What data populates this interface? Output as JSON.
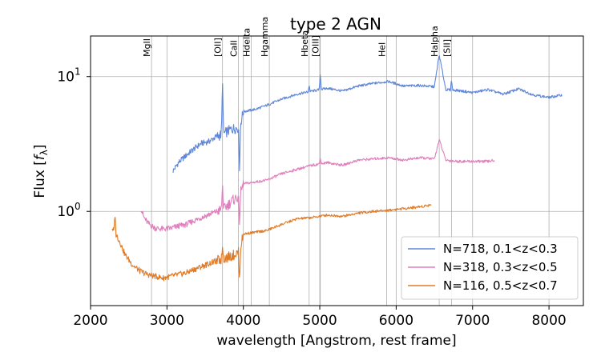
{
  "chart_data": {
    "type": "line",
    "title": "type 2 AGN",
    "xlabel": "wavelength [Angstrom, rest frame]",
    "ylabel_main": "Flux [",
    "ylabel_sym": "f",
    "ylabel_sub": "λ",
    "ylabel_close": "]",
    "xlim": [
      2000,
      8450
    ],
    "ylim": [
      0.2,
      20
    ],
    "yscale": "log",
    "grid": true,
    "legend_position": "lower right",
    "x_ticks": [
      {
        "value": 2000,
        "label": "2000"
      },
      {
        "value": 3000,
        "label": "3000"
      },
      {
        "value": 4000,
        "label": "4000"
      },
      {
        "value": 5000,
        "label": "5000"
      },
      {
        "value": 6000,
        "label": "6000"
      },
      {
        "value": 7000,
        "label": "7000"
      },
      {
        "value": 8000,
        "label": "8000"
      }
    ],
    "y_ticks": [
      {
        "value": 1,
        "base": "10",
        "exp": "0"
      },
      {
        "value": 10,
        "base": "10",
        "exp": "1"
      }
    ],
    "lines": [
      {
        "label": "MgII",
        "x": 2798
      },
      {
        "label": "[OII]",
        "x": 3727
      },
      {
        "label": "CaII",
        "x": 3934
      },
      {
        "label": "Hdelta",
        "x": 4102
      },
      {
        "label": "Hgamma",
        "x": 4340
      },
      {
        "label": "Hbeta",
        "x": 4861
      },
      {
        "label": "[OIII]",
        "x": 5007
      },
      {
        "label": "HeI",
        "x": 5876
      },
      {
        "label": "Halpha",
        "x": 6563
      },
      {
        "label": "[SII]",
        "x": 6724
      }
    ],
    "series": [
      {
        "name": "N=718, 0.1<z<0.3",
        "color": "#5f86d8",
        "x": [
          3080,
          3150,
          3250,
          3350,
          3450,
          3550,
          3650,
          3750,
          3850,
          3950,
          4000,
          4150,
          4300,
          4500,
          4700,
          4900,
          5100,
          5300,
          5500,
          5700,
          5900,
          6100,
          6300,
          6500,
          6563,
          6650,
          6800,
          7000,
          7200,
          7400,
          7600,
          7800,
          8000,
          8170
        ],
        "y": [
          2.0,
          2.3,
          2.6,
          2.9,
          3.2,
          3.3,
          3.6,
          3.8,
          4.1,
          4.2,
          5.5,
          5.7,
          6.1,
          6.8,
          7.4,
          7.8,
          8.2,
          7.8,
          8.5,
          8.9,
          9.2,
          8.5,
          8.6,
          8.4,
          14.5,
          8.0,
          7.9,
          7.6,
          8.0,
          7.4,
          8.1,
          7.3,
          7.0,
          7.3
        ],
        "spikes": [
          [
            3727,
            9.5
          ],
          [
            3950,
            2.0
          ],
          [
            4861,
            8.6
          ],
          [
            5007,
            10.5
          ],
          [
            6724,
            9.5
          ]
        ]
      },
      {
        "name": "N=318, 0.3<z<0.5",
        "color": "#e07fbd",
        "x": [
          2660,
          2700,
          2750,
          2800,
          2850,
          2950,
          3050,
          3150,
          3250,
          3350,
          3450,
          3550,
          3650,
          3750,
          3850,
          3950,
          4000,
          4150,
          4300,
          4500,
          4700,
          4900,
          5100,
          5300,
          5500,
          5700,
          5900,
          6100,
          6300,
          6500,
          6563,
          6650,
          6800,
          7000,
          7200,
          7290
        ],
        "y": [
          1.05,
          0.9,
          0.82,
          0.78,
          0.75,
          0.74,
          0.75,
          0.78,
          0.8,
          0.85,
          0.9,
          0.95,
          1.0,
          1.05,
          1.2,
          1.3,
          1.6,
          1.65,
          1.7,
          1.9,
          2.05,
          2.2,
          2.3,
          2.2,
          2.4,
          2.45,
          2.5,
          2.4,
          2.5,
          2.45,
          3.4,
          2.4,
          2.35,
          2.35,
          2.35,
          2.4
        ],
        "spikes": [
          [
            3727,
            1.6
          ],
          [
            3950,
            0.8
          ],
          [
            5007,
            2.5
          ]
        ]
      },
      {
        "name": "N=116, 0.5<z<0.7",
        "color": "#e07b28",
        "x": [
          2280,
          2320,
          2380,
          2450,
          2550,
          2650,
          2750,
          2850,
          2950,
          3050,
          3150,
          3250,
          3350,
          3450,
          3550,
          3650,
          3750,
          3850,
          3950,
          4000,
          4150,
          4300,
          4500,
          4700,
          4900,
          5100,
          5300,
          5500,
          5700,
          5900,
          6100,
          6300,
          6460
        ],
        "y": [
          0.75,
          0.7,
          0.6,
          0.48,
          0.4,
          0.36,
          0.34,
          0.33,
          0.32,
          0.33,
          0.34,
          0.35,
          0.37,
          0.39,
          0.41,
          0.43,
          0.45,
          0.47,
          0.5,
          0.68,
          0.7,
          0.72,
          0.8,
          0.88,
          0.9,
          0.94,
          0.92,
          0.97,
          1.0,
          1.02,
          1.05,
          1.08,
          1.12
        ],
        "spikes": [
          [
            2320,
            0.95
          ],
          [
            3727,
            0.55
          ],
          [
            3950,
            0.3
          ]
        ]
      }
    ]
  }
}
